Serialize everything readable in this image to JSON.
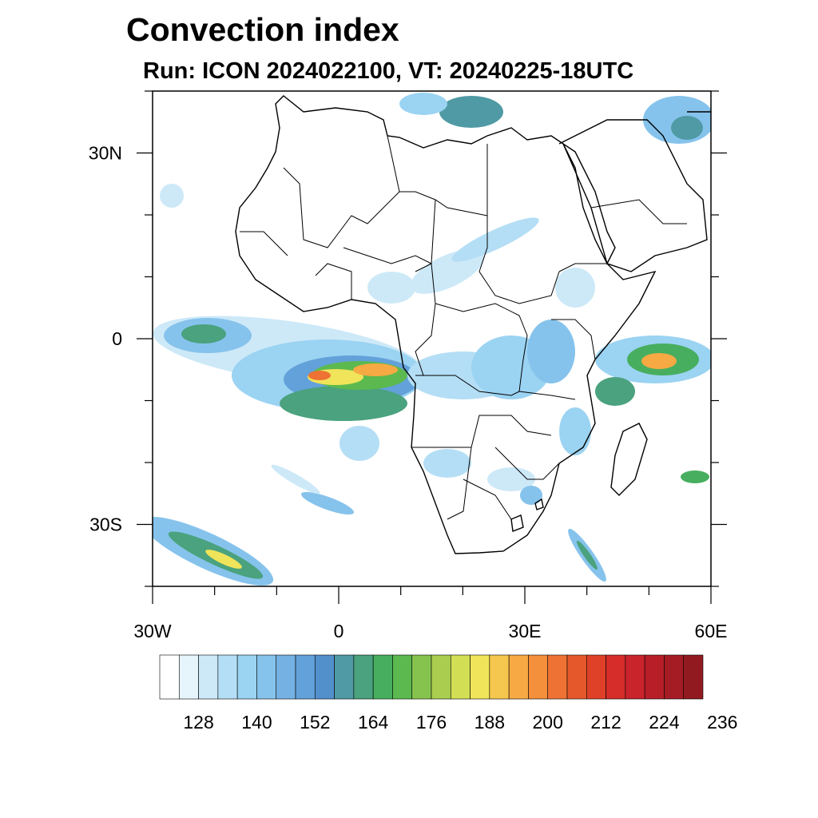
{
  "title": "Convection index",
  "subtitle": "Run: ICON 2024022100,  VT: 20240225-18UTC",
  "map": {
    "extent": {
      "lon": [
        -30,
        60
      ],
      "lat": [
        -40,
        40
      ]
    },
    "lat_ticks": [
      {
        "value": 30,
        "label": "30N"
      },
      {
        "value": 0,
        "label": "0"
      },
      {
        "value": -30,
        "label": "30S"
      }
    ],
    "lon_ticks": [
      {
        "value": -30,
        "label": "30W"
      },
      {
        "value": 0,
        "label": "0"
      },
      {
        "value": 30,
        "label": "30E"
      },
      {
        "value": 60,
        "label": "60E"
      }
    ],
    "minor_lat_ticks": [
      40,
      20,
      10,
      -10,
      -20,
      -40
    ],
    "minor_lon_ticks": [
      -20,
      -10,
      10,
      20,
      40,
      50
    ]
  },
  "colorbar": {
    "colors": [
      "#ffffff",
      "#e6f4fc",
      "#cde9f8",
      "#b4def5",
      "#9bd3f2",
      "#86c3ec",
      "#75b2e3",
      "#63a1da",
      "#5290cc",
      "#4f9aa5",
      "#4aa27e",
      "#47ae5f",
      "#5cb94f",
      "#86c34e",
      "#aacd4f",
      "#d2df55",
      "#f0e45a",
      "#f6c74e",
      "#f7a943",
      "#f48f3b",
      "#ee7233",
      "#e5582c",
      "#de4128",
      "#d62c2a",
      "#c9232c",
      "#b71e28",
      "#a51c24",
      "#911a20"
    ],
    "labels": [
      "128",
      "140",
      "152",
      "164",
      "176",
      "188",
      "200",
      "212",
      "224",
      "236"
    ]
  }
}
